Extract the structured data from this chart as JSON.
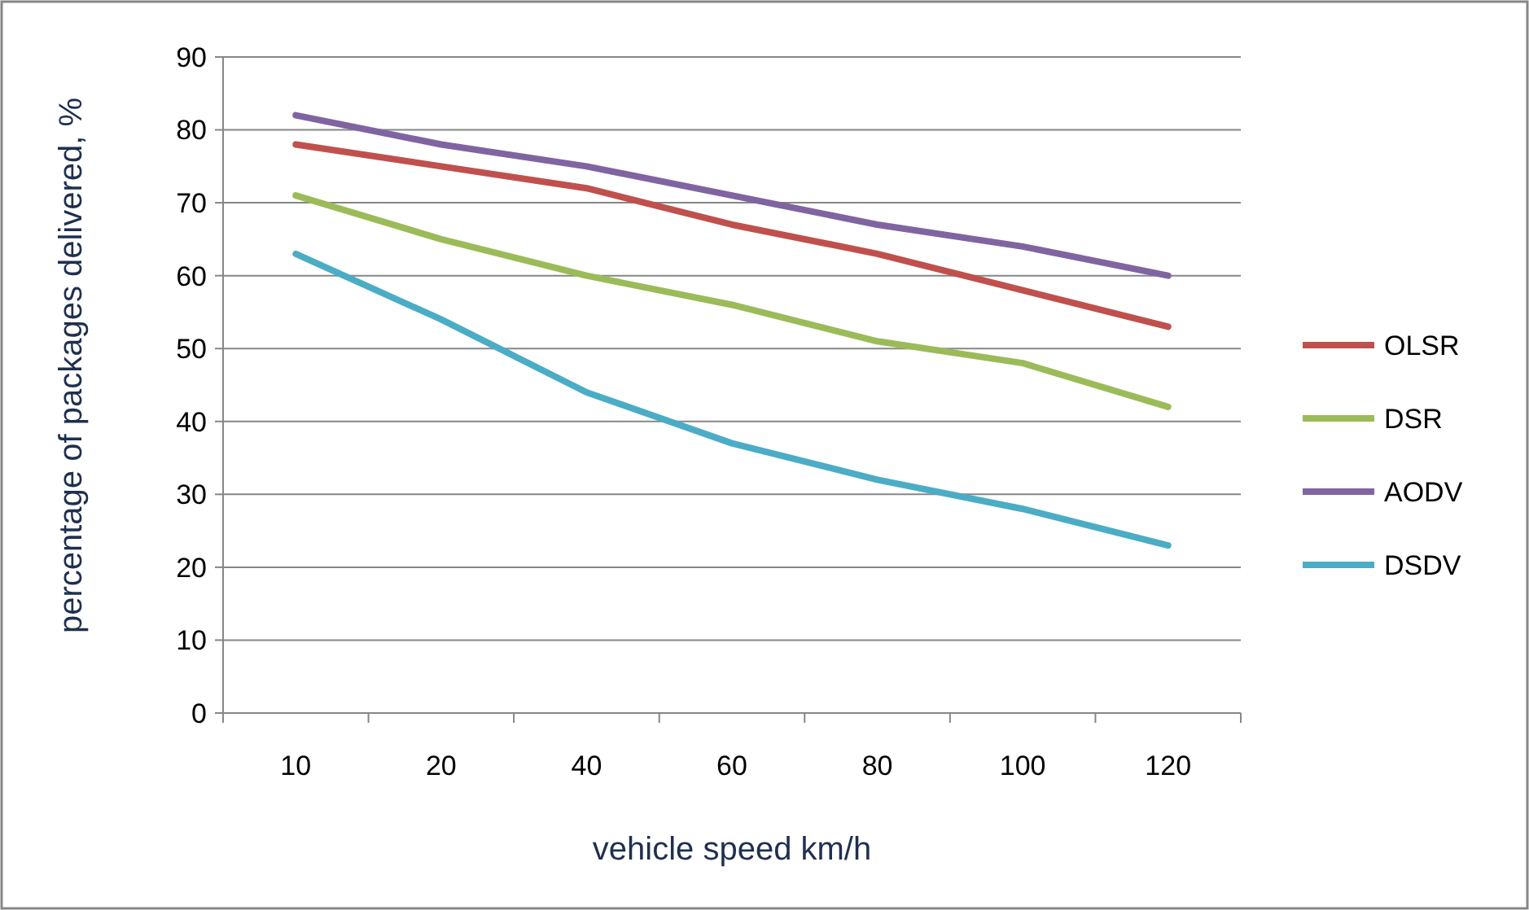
{
  "chart_data": {
    "type": "line",
    "xlabel": "vehicle speed km/h",
    "ylabel": "percentage of packages delivered, %",
    "categories": [
      "10",
      "20",
      "40",
      "60",
      "80",
      "100",
      "120"
    ],
    "series": [
      {
        "name": "OLSR",
        "color": "#c0504d",
        "values": [
          78,
          75,
          72,
          67,
          63,
          58,
          53
        ]
      },
      {
        "name": "DSR",
        "color": "#9bbb59",
        "values": [
          71,
          65,
          60,
          56,
          51,
          48,
          42
        ]
      },
      {
        "name": "AODV",
        "color": "#8064a2",
        "values": [
          82,
          78,
          75,
          71,
          67,
          64,
          60
        ]
      },
      {
        "name": "DSDV",
        "color": "#4bacc6",
        "values": [
          63,
          54,
          44,
          37,
          32,
          28,
          23
        ]
      }
    ],
    "ylim": [
      0,
      90
    ],
    "yticks": [
      0,
      10,
      20,
      30,
      40,
      50,
      60,
      70,
      80,
      90
    ],
    "grid": "y",
    "legend": "right",
    "marker": "none",
    "line_style": "solid"
  }
}
